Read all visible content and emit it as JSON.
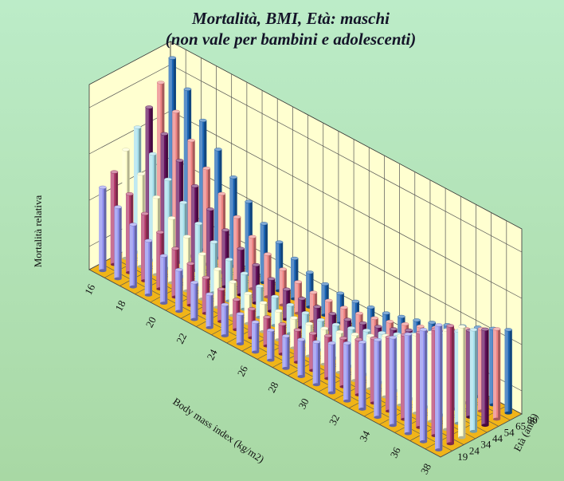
{
  "chart_data": {
    "type": "bar3d",
    "title": "Mortalità, BMI, Età: maschi",
    "subtitle": "(non vale per bambini e adolescenti)",
    "xlabel": "Body mass index (kg/m2)",
    "ylabel": "Età (anni)",
    "zlabel": "Mortalità relativa",
    "x_tick_labels": [
      "16",
      "18",
      "20",
      "22",
      "24",
      "26",
      "28",
      "30",
      "32",
      "34",
      "36",
      "38"
    ],
    "y_tick_labels": [
      "19",
      "24",
      "34",
      "44",
      "54",
      "65",
      "80"
    ],
    "x": [
      16,
      17,
      18,
      19,
      20,
      21,
      22,
      23,
      24,
      25,
      26,
      27,
      28,
      29,
      30,
      31,
      32,
      33,
      34,
      35,
      36,
      37,
      38
    ],
    "series": [
      {
        "age": "19",
        "color": "#9090ee",
        "values": [
          3.6,
          3.1,
          2.7,
          2.35,
          2.05,
          1.8,
          1.6,
          1.45,
          1.35,
          1.3,
          1.3,
          1.3,
          1.4,
          1.6,
          1.85,
          2.15,
          2.5,
          2.9,
          3.35,
          3.8,
          4.3,
          4.85,
          5.4
        ]
      },
      {
        "age": "24",
        "color": "#b23a6a",
        "values": [
          4.0,
          3.4,
          2.9,
          2.45,
          2.1,
          1.8,
          1.55,
          1.4,
          1.3,
          1.25,
          1.25,
          1.3,
          1.4,
          1.6,
          1.85,
          2.1,
          2.4,
          2.8,
          3.2,
          3.65,
          4.1,
          4.6,
          5.1
        ]
      },
      {
        "age": "34",
        "color": "#ffffcc",
        "values": [
          4.7,
          4.0,
          3.35,
          2.8,
          2.35,
          1.95,
          1.65,
          1.45,
          1.3,
          1.25,
          1.25,
          1.3,
          1.4,
          1.55,
          1.75,
          2.0,
          2.3,
          2.65,
          3.0,
          3.4,
          3.85,
          4.3,
          4.8
        ]
      },
      {
        "age": "44",
        "color": "#a8e0ec",
        "values": [
          5.4,
          4.6,
          3.85,
          3.2,
          2.65,
          2.2,
          1.8,
          1.55,
          1.35,
          1.25,
          1.25,
          1.25,
          1.3,
          1.45,
          1.65,
          1.9,
          2.15,
          2.45,
          2.8,
          3.15,
          3.55,
          4.0,
          4.4
        ]
      },
      {
        "age": "54",
        "color": "#64105c",
        "values": [
          6.0,
          5.2,
          4.4,
          3.65,
          3.0,
          2.45,
          2.0,
          1.65,
          1.4,
          1.3,
          1.25,
          1.25,
          1.3,
          1.4,
          1.6,
          1.8,
          2.05,
          2.35,
          2.65,
          3.0,
          3.35,
          3.75,
          4.15
        ]
      },
      {
        "age": "65",
        "color": "#ec8080",
        "values": [
          6.8,
          5.9,
          5.0,
          4.15,
          3.4,
          2.75,
          2.25,
          1.85,
          1.55,
          1.35,
          1.25,
          1.25,
          1.3,
          1.4,
          1.55,
          1.75,
          2.0,
          2.25,
          2.55,
          2.85,
          3.2,
          3.55,
          3.9
        ]
      },
      {
        "age": "80",
        "color": "#1a64b4",
        "values": [
          7.6,
          6.6,
          5.6,
          4.7,
          3.85,
          3.15,
          2.55,
          2.1,
          1.75,
          1.5,
          1.35,
          1.3,
          1.3,
          1.4,
          1.5,
          1.7,
          1.9,
          2.15,
          2.4,
          2.7,
          3.0,
          3.3,
          3.6
        ]
      }
    ],
    "zlim": [
      0,
      8
    ],
    "grid": true,
    "colors": {
      "background_top": "#bcecc8",
      "background_bottom": "#a8d8a4",
      "floor": "#f0b418",
      "walls": "#ffffd0",
      "title_text": "#141428"
    }
  }
}
